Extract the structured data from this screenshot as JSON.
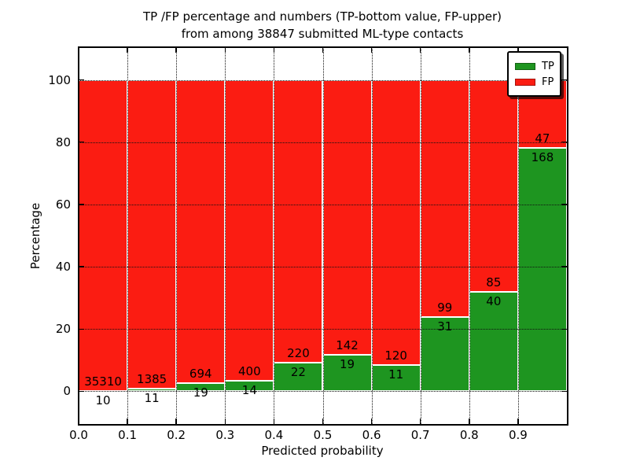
{
  "figure": {
    "title_line1": "TP /FP percentage and numbers (TP-bottom value, FP-upper)",
    "title_line2": "from among 38847 submitted ML-type contacts",
    "xlabel": "Predicted probability",
    "ylabel": "Percentage"
  },
  "legend": {
    "position": "upper right",
    "items": [
      {
        "label": "TP",
        "color": "#1e9520"
      },
      {
        "label": "FP",
        "color": "#fb1c12"
      }
    ]
  },
  "chart_data": {
    "type": "bar",
    "stacked": true,
    "normalized": "each bin scaled to 100%",
    "title": "TP /FP percentage and numbers (TP-bottom value, FP-upper) from among 38847 submitted ML-type contacts",
    "xlabel": "Predicted probability",
    "ylabel": "Percentage",
    "xlim": [
      0.0,
      1.0
    ],
    "ylim": [
      -10.5,
      110.5
    ],
    "x_tick_labels": [
      "0.0",
      "0.1",
      "0.2",
      "0.3",
      "0.4",
      "0.5",
      "0.6",
      "0.7",
      "0.8",
      "0.9"
    ],
    "y_ticks": [
      0,
      20,
      40,
      60,
      80,
      100
    ],
    "grid": true,
    "legend_position": "upper right",
    "total_submitted": 38847,
    "bins": [
      [
        0.0,
        0.1
      ],
      [
        0.1,
        0.2
      ],
      [
        0.2,
        0.3
      ],
      [
        0.3,
        0.4
      ],
      [
        0.4,
        0.5
      ],
      [
        0.5,
        0.6
      ],
      [
        0.6,
        0.7
      ],
      [
        0.7,
        0.8
      ],
      [
        0.8,
        0.9
      ],
      [
        0.9,
        1.0
      ]
    ],
    "series": [
      {
        "name": "TP",
        "color": "#1e9520",
        "counts": [
          10,
          11,
          19,
          14,
          22,
          19,
          11,
          31,
          40,
          168
        ]
      },
      {
        "name": "FP",
        "color": "#fb1c12",
        "counts": [
          35310,
          1385,
          694,
          400,
          220,
          142,
          120,
          99,
          85,
          47
        ]
      }
    ],
    "tp_percent_of_bin": [
      0.03,
      0.79,
      2.66,
      3.38,
      9.09,
      11.8,
      8.4,
      23.85,
      32.0,
      78.14
    ]
  },
  "colors": {
    "tp_green": "#1e9520",
    "fp_red": "#fb1c12",
    "bar_edge": "#ffffff",
    "grid": "#111111",
    "frame": "#000000",
    "background": "#ffffff"
  }
}
